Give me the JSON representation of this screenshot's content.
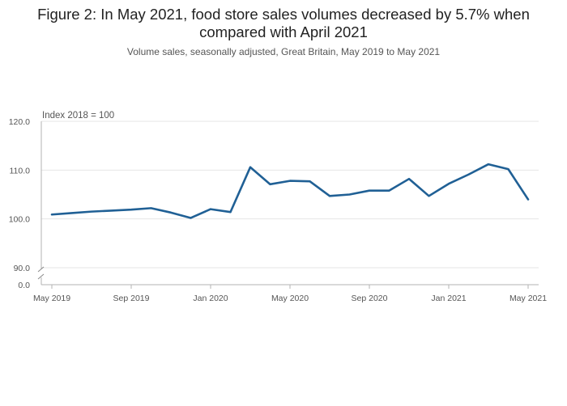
{
  "title_lines": [
    "Figure 2: In May 2021, food store sales volumes decreased by 5.7% when",
    "compared with April 2021"
  ],
  "subtitle": "Volume sales, seasonally adjusted, Great Britain, May 2019 to May 2021",
  "chart_data": {
    "type": "line",
    "title": "Figure 2: In May 2021, food store sales volumes decreased by 5.7% when compared with April 2021",
    "subtitle": "Volume sales, seasonally adjusted, Great Britain, May 2019 to May 2021",
    "ylabel": "Index 2018 = 100",
    "ylim": [
      90,
      120
    ],
    "y_break_label": "0.0",
    "y_ticks": [
      "120.0",
      "110.0",
      "100.0",
      "90.0"
    ],
    "y_tick_values": [
      120,
      110,
      100,
      90
    ],
    "x_tick_labels": [
      "May 2019",
      "Sep 2019",
      "Jan 2020",
      "May 2020",
      "Sep 2020",
      "Jan 2021",
      "May 2021"
    ],
    "x_tick_index": [
      0,
      4,
      8,
      12,
      16,
      20,
      24
    ],
    "x": [
      "May 2019",
      "Jun 2019",
      "Jul 2019",
      "Aug 2019",
      "Sep 2019",
      "Oct 2019",
      "Nov 2019",
      "Dec 2019",
      "Jan 2020",
      "Feb 2020",
      "Mar 2020",
      "Apr 2020",
      "May 2020",
      "Jun 2020",
      "Jul 2020",
      "Aug 2020",
      "Sep 2020",
      "Oct 2020",
      "Nov 2020",
      "Dec 2020",
      "Jan 2021",
      "Feb 2021",
      "Mar 2021",
      "Apr 2021",
      "May 2021"
    ],
    "series": [
      {
        "color": "#206095",
        "values": [
          100.9,
          101.2,
          101.5,
          101.7,
          101.9,
          102.2,
          101.3,
          100.2,
          102.0,
          101.4,
          110.6,
          107.1,
          107.8,
          107.7,
          104.7,
          105.0,
          105.8,
          105.8,
          108.2,
          104.7,
          107.2,
          109.1,
          111.2,
          110.2,
          104.0
        ]
      }
    ],
    "grid": true,
    "legend": "none"
  }
}
